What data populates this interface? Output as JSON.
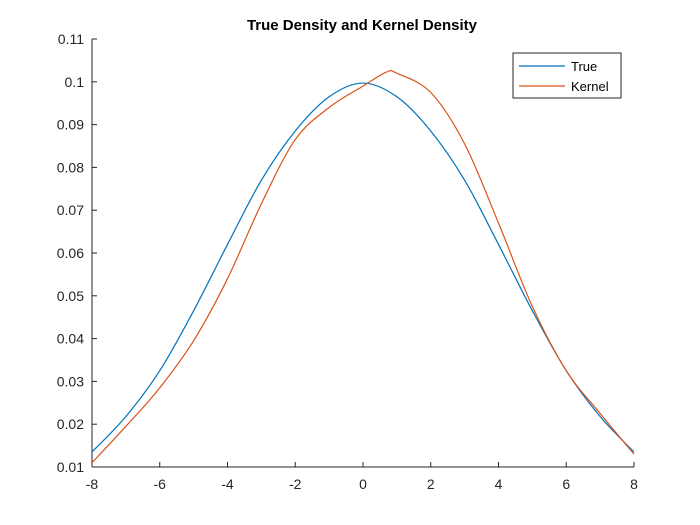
{
  "chart_data": {
    "type": "line",
    "title": "True Density and Kernel Density",
    "xlabel": "",
    "ylabel": "",
    "xlim": [
      -8,
      8
    ],
    "ylim": [
      0.01,
      0.11
    ],
    "xticks": [
      -8,
      -6,
      -4,
      -2,
      0,
      2,
      4,
      6,
      8
    ],
    "xtick_labels": [
      "-8",
      "-6",
      "-4",
      "-2",
      "0",
      "2",
      "4",
      "6",
      "8"
    ],
    "yticks": [
      0.01,
      0.02,
      0.03,
      0.04,
      0.05,
      0.06,
      0.07,
      0.08,
      0.09,
      0.1,
      0.11
    ],
    "ytick_labels": [
      "0.01",
      "0.02",
      "0.03",
      "0.04",
      "0.05",
      "0.06",
      "0.07",
      "0.08",
      "0.09",
      "0.1",
      "0.11"
    ],
    "grid": false,
    "legend_position": "top-right",
    "series": [
      {
        "name": "True",
        "color": "#0072BD",
        "x": [
          -8,
          -7,
          -6,
          -5,
          -4,
          -3,
          -2,
          -1,
          0,
          1,
          2,
          3,
          4,
          5,
          6,
          7,
          8
        ],
        "y": [
          0.0135,
          0.0218,
          0.0325,
          0.0465,
          0.062,
          0.077,
          0.0885,
          0.0965,
          0.0997,
          0.0965,
          0.0885,
          0.077,
          0.062,
          0.0465,
          0.0325,
          0.0218,
          0.0135
        ]
      },
      {
        "name": "Kernel",
        "color": "#D95319",
        "x": [
          -8,
          -7,
          -6,
          -5,
          -4,
          -3,
          -2,
          -1,
          0,
          0.7,
          1,
          2,
          3,
          4,
          5,
          6,
          7,
          8
        ],
        "y": [
          0.011,
          0.0195,
          0.0285,
          0.0395,
          0.054,
          0.0715,
          0.0865,
          0.094,
          0.099,
          0.1023,
          0.102,
          0.0975,
          0.0855,
          0.067,
          0.0475,
          0.0325,
          0.0225,
          0.013
        ]
      }
    ]
  }
}
